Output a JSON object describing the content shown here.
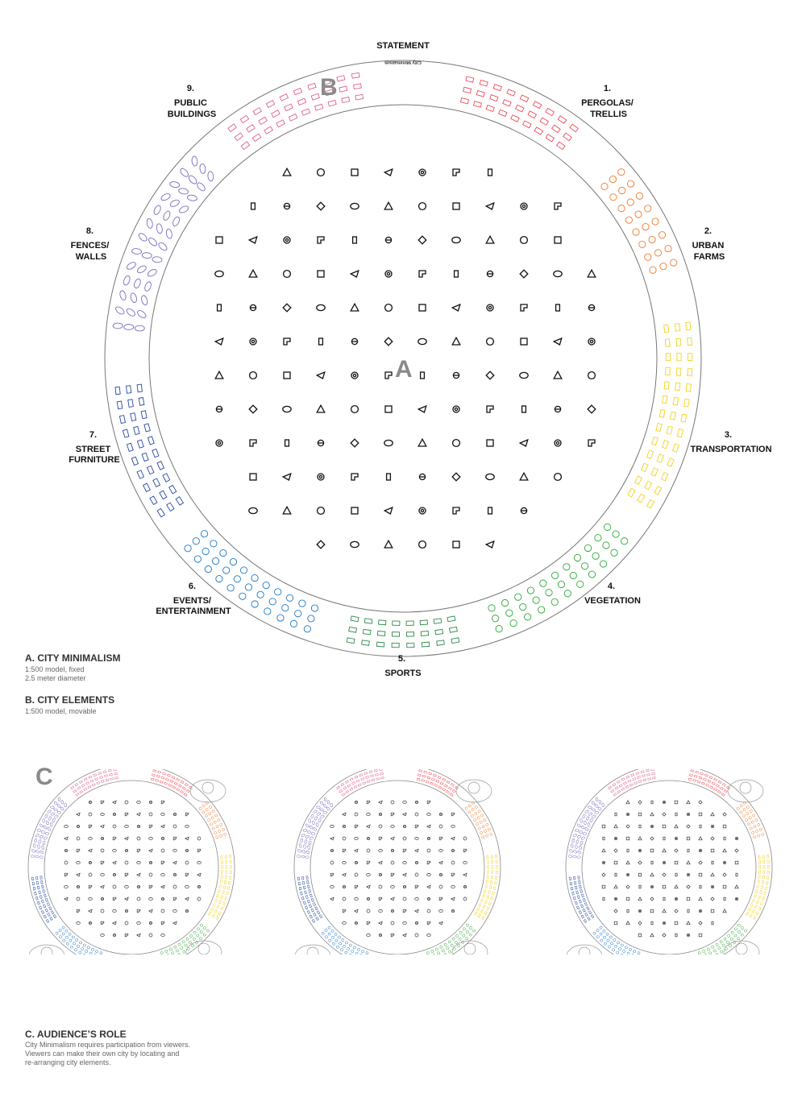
{
  "diagram": {
    "statement_label": "STATEMENT",
    "statement_title": "City Minimalism",
    "marker_a": "A",
    "marker_b": "B",
    "marker_c": "C",
    "categories": [
      {
        "lines": [
          "1.",
          "PERGOLAS/",
          "TRELLIS"
        ],
        "color": "#ee4b5a"
      },
      {
        "lines": [
          "2.",
          "URBAN",
          "FARMS"
        ],
        "color": "#f07a2a"
      },
      {
        "lines": [
          "3.",
          "TRANSPORTATION"
        ],
        "color": "#f2d21f"
      },
      {
        "lines": [
          "4.",
          "VEGETATION"
        ],
        "color": "#2ea836"
      },
      {
        "lines": [
          "5.",
          "SPORTS"
        ],
        "color": "#2e8a4a"
      },
      {
        "lines": [
          "6.",
          "EVENTS/",
          "ENTERTAINMENT"
        ],
        "color": "#1d78c3"
      },
      {
        "lines": [
          "7.",
          "STREET",
          "FURNITURE"
        ],
        "color": "#2848a0"
      },
      {
        "lines": [
          "8.",
          "FENCES/",
          "WALLS"
        ],
        "color": "#7d6cc0"
      },
      {
        "lines": [
          "9.",
          "PUBLIC",
          "BUILDINGS"
        ],
        "color": "#e06090"
      }
    ]
  },
  "captions": {
    "a": {
      "title": "A. CITY MINIMALISM",
      "lines": [
        "1:500 model, fixed",
        "2.5 meter diameter"
      ]
    },
    "b": {
      "title": "B. CITY ELEMENTS",
      "lines": [
        "1:500 model, movable"
      ]
    },
    "c": {
      "title": "C. AUDIENCE’S ROLE",
      "lines": [
        "City Minimalism requires participation from viewers.",
        "Viewers can make their own city by locating and",
        "re-arranging city elements."
      ]
    }
  }
}
